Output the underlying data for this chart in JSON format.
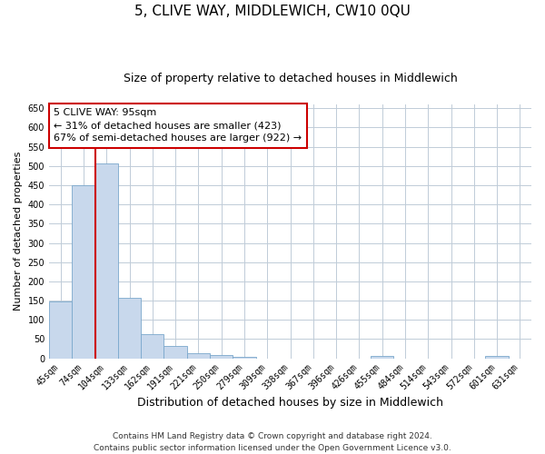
{
  "title": "5, CLIVE WAY, MIDDLEWICH, CW10 0QU",
  "subtitle": "Size of property relative to detached houses in Middlewich",
  "xlabel": "Distribution of detached houses by size in Middlewich",
  "ylabel": "Number of detached properties",
  "categories": [
    "45sqm",
    "74sqm",
    "104sqm",
    "133sqm",
    "162sqm",
    "191sqm",
    "221sqm",
    "250sqm",
    "279sqm",
    "309sqm",
    "338sqm",
    "367sqm",
    "396sqm",
    "426sqm",
    "455sqm",
    "484sqm",
    "514sqm",
    "543sqm",
    "572sqm",
    "601sqm",
    "631sqm"
  ],
  "values": [
    148,
    450,
    507,
    158,
    63,
    32,
    13,
    8,
    4,
    0,
    0,
    0,
    0,
    0,
    5,
    0,
    0,
    0,
    0,
    6,
    0
  ],
  "bar_color": "#c8d8ec",
  "bar_edge_color": "#7aa8cc",
  "bar_width": 1.0,
  "ylim": [
    0,
    660
  ],
  "yticks": [
    0,
    50,
    100,
    150,
    200,
    250,
    300,
    350,
    400,
    450,
    500,
    550,
    600,
    650
  ],
  "annotation_title": "5 CLIVE WAY: 95sqm",
  "annotation_line1": "← 31% of detached houses are smaller (423)",
  "annotation_line2": "67% of semi-detached houses are larger (922) →",
  "annotation_box_color": "#ffffff",
  "annotation_box_edge_color": "#cc0000",
  "red_line_color": "#cc0000",
  "footer1": "Contains HM Land Registry data © Crown copyright and database right 2024.",
  "footer2": "Contains public sector information licensed under the Open Government Licence v3.0.",
  "background_color": "#ffffff",
  "grid_color": "#c0ccd8",
  "title_fontsize": 11,
  "subtitle_fontsize": 9,
  "xlabel_fontsize": 9,
  "ylabel_fontsize": 8,
  "tick_fontsize": 7,
  "annotation_fontsize": 8,
  "footer_fontsize": 6.5
}
